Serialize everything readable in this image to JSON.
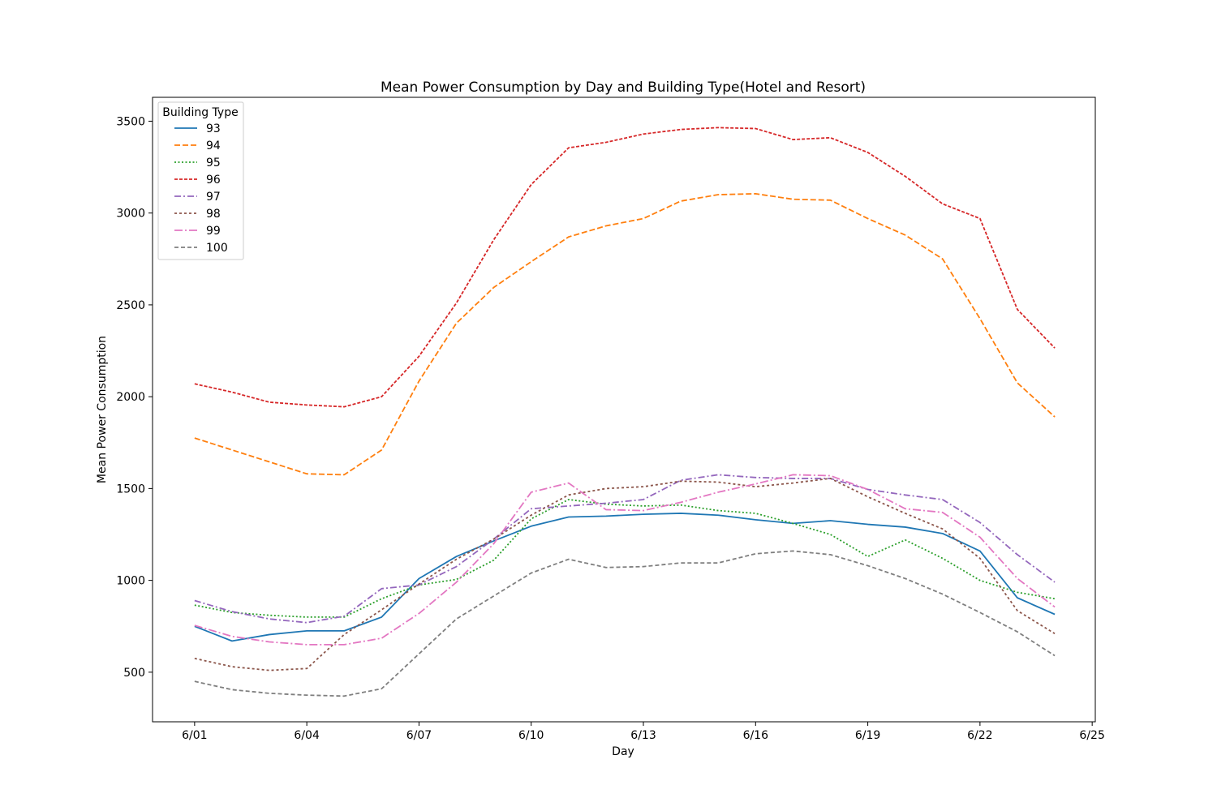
{
  "chart_data": {
    "type": "line",
    "title": "Mean Power Consumption by Day and Building Type(Hotel and Resort)",
    "xlabel": "Day",
    "ylabel": "Mean Power Consumption",
    "x": [
      "2022-06-01",
      "2022-06-02",
      "2022-06-03",
      "2022-06-04",
      "2022-06-05",
      "2022-06-06",
      "2022-06-07",
      "2022-06-08",
      "2022-06-09",
      "2022-06-10",
      "2022-06-11",
      "2022-06-12",
      "2022-06-13",
      "2022-06-14",
      "2022-06-15",
      "2022-06-16",
      "2022-06-17",
      "2022-06-18",
      "2022-06-19",
      "2022-06-20",
      "2022-06-21",
      "2022-06-22",
      "2022-06-23",
      "2022-06-24"
    ],
    "xlim": [
      "2022-05-30T21:00",
      "2022-06-25T02:00"
    ],
    "ylim": [
      230,
      3630
    ],
    "x_ticks": [
      {
        "date": "2022-06-01",
        "label": "6/01"
      },
      {
        "date": "2022-06-04",
        "label": "6/04"
      },
      {
        "date": "2022-06-07",
        "label": "6/07"
      },
      {
        "date": "2022-06-10",
        "label": "6/10"
      },
      {
        "date": "2022-06-13",
        "label": "6/13"
      },
      {
        "date": "2022-06-16",
        "label": "6/16"
      },
      {
        "date": "2022-06-19",
        "label": "6/19"
      },
      {
        "date": "2022-06-22",
        "label": "6/22"
      },
      {
        "date": "2022-06-25",
        "label": "6/25"
      }
    ],
    "y_ticks": [
      500,
      1000,
      1500,
      2000,
      2500,
      3000,
      3500
    ],
    "grid": false,
    "legend": {
      "title": "Building Type",
      "placement": "top-left"
    },
    "series": [
      {
        "name": "93",
        "color": "#1f77b4",
        "dash": "solid",
        "values": [
          750,
          670,
          705,
          725,
          725,
          800,
          1010,
          1130,
          1215,
          1295,
          1345,
          1350,
          1360,
          1365,
          1355,
          1330,
          1310,
          1325,
          1305,
          1290,
          1255,
          1160,
          905,
          815
        ]
      },
      {
        "name": "94",
        "color": "#ff7f0e",
        "dash": "dashed",
        "values": [
          1775,
          1710,
          1645,
          1580,
          1575,
          1710,
          2085,
          2400,
          2595,
          2735,
          2870,
          2930,
          2970,
          3065,
          3100,
          3105,
          3075,
          3070,
          2970,
          2880,
          2750,
          2425,
          2075,
          1890
        ]
      },
      {
        "name": "95",
        "color": "#2ca02c",
        "dash": "dotted",
        "values": [
          865,
          825,
          810,
          800,
          800,
          900,
          975,
          1005,
          1110,
          1335,
          1440,
          1415,
          1405,
          1410,
          1380,
          1365,
          1310,
          1250,
          1130,
          1220,
          1120,
          1000,
          935,
          900
        ]
      },
      {
        "name": "96",
        "color": "#d62728",
        "dash": "densedash",
        "values": [
          2070,
          2025,
          1970,
          1955,
          1945,
          2000,
          2220,
          2510,
          2855,
          3155,
          3355,
          3385,
          3430,
          3455,
          3465,
          3460,
          3400,
          3410,
          3330,
          3200,
          3050,
          2970,
          2475,
          2265
        ]
      },
      {
        "name": "97",
        "color": "#9467bd",
        "dash": "dashdot",
        "values": [
          890,
          830,
          790,
          770,
          805,
          955,
          975,
          1075,
          1225,
          1390,
          1405,
          1420,
          1440,
          1545,
          1575,
          1560,
          1555,
          1555,
          1495,
          1465,
          1440,
          1315,
          1140,
          990
        ]
      },
      {
        "name": "98",
        "color": "#8c564b",
        "dash": "densedot",
        "values": [
          575,
          530,
          510,
          520,
          705,
          840,
          980,
          1115,
          1225,
          1355,
          1465,
          1500,
          1510,
          1540,
          1535,
          1510,
          1530,
          1555,
          1455,
          1365,
          1280,
          1120,
          835,
          710
        ]
      },
      {
        "name": "99",
        "color": "#e377c2",
        "dash": "longdashdot",
        "values": [
          755,
          695,
          665,
          650,
          650,
          685,
          820,
          990,
          1200,
          1480,
          1530,
          1385,
          1380,
          1425,
          1480,
          1525,
          1575,
          1570,
          1495,
          1390,
          1370,
          1235,
          1010,
          855
        ]
      },
      {
        "name": "100",
        "color": "#7f7f7f",
        "dash": "mediumdash",
        "values": [
          450,
          405,
          385,
          375,
          370,
          410,
          600,
          790,
          915,
          1040,
          1115,
          1070,
          1075,
          1095,
          1095,
          1145,
          1160,
          1140,
          1080,
          1010,
          925,
          825,
          720,
          590
        ]
      }
    ]
  }
}
